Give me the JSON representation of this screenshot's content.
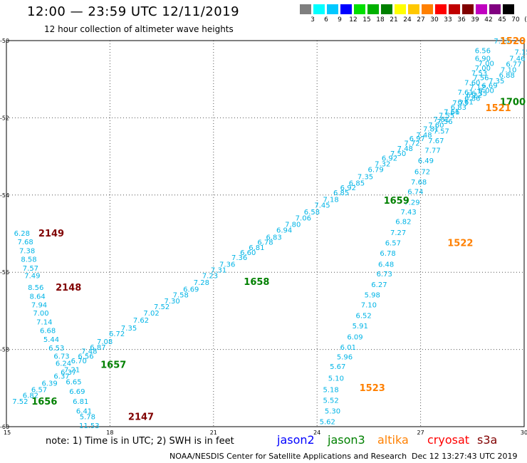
{
  "header": {
    "title": "12:00 — 23:59 UTC 12/11/2019",
    "subtitle": "12 hour collection of altimeter wave heights"
  },
  "legend": {
    "labels": [
      "3",
      "6",
      "9",
      "12",
      "15",
      "18",
      "21",
      "24",
      "27",
      "30",
      "33",
      "36",
      "39",
      "42",
      "45",
      "70",
      "(ft)"
    ],
    "colors": [
      "#7f7f7f",
      "#00ffff",
      "#00c8ff",
      "#0000ff",
      "#00e000",
      "#00b000",
      "#008000",
      "#ffff00",
      "#ffc800",
      "#ff8000",
      "#ff0000",
      "#c00000",
      "#800000",
      "#c000c0",
      "#800080",
      "#000000"
    ]
  },
  "chart_data": {
    "type": "scatter",
    "xlim": [
      15,
      30
    ],
    "ylim": [
      -60,
      -50
    ],
    "x_ticks": [
      "15",
      "18",
      "21",
      "24",
      "27",
      "30"
    ],
    "y_ticks": [
      "-50",
      "-52",
      "-54",
      "-56",
      "-58",
      "-60"
    ],
    "wave_color": "#00b4e6",
    "tracks": [
      {
        "time": "2149",
        "color": "#800000",
        "label_pos": [
          16.3,
          -55.0
        ],
        "points": [
          [
            15.45,
            -55.0,
            "6.28"
          ],
          [
            15.55,
            -55.22,
            "7.68"
          ],
          [
            15.6,
            -55.45,
            "7.38"
          ],
          [
            15.65,
            -55.67,
            "8.58"
          ],
          [
            15.7,
            -55.9,
            "7.57"
          ],
          [
            15.75,
            -56.1,
            "7.49"
          ]
        ]
      },
      {
        "time": "2148",
        "color": "#800000",
        "label_pos": [
          16.8,
          -56.4
        ],
        "points": [
          [
            15.85,
            -56.4,
            "8.56"
          ],
          [
            15.9,
            -56.63,
            "8.64"
          ],
          [
            15.95,
            -56.85,
            "7.94"
          ],
          [
            16.0,
            -57.07,
            "7.00"
          ],
          [
            16.1,
            -57.3,
            "7.14"
          ],
          [
            16.2,
            -57.52,
            "6.68"
          ],
          [
            16.3,
            -57.75,
            "5.44"
          ],
          [
            16.45,
            -57.97,
            "6.53"
          ],
          [
            16.6,
            -58.18,
            "6.73"
          ],
          [
            16.65,
            -58.37,
            "6.24"
          ],
          [
            16.8,
            -58.6,
            "6.37"
          ],
          [
            16.95,
            -58.85,
            "6.65"
          ],
          [
            17.05,
            -59.1,
            "6.69"
          ],
          [
            17.15,
            -59.35,
            "6.81"
          ],
          [
            17.25,
            -59.6,
            "6.41"
          ],
          [
            17.35,
            -59.75,
            "5.78"
          ],
          [
            17.4,
            -59.98,
            "11.53"
          ]
        ]
      },
      {
        "time": "2147",
        "color": "#800000",
        "label_pos": [
          18.9,
          -59.75
        ],
        "points": []
      },
      {
        "time": "1656",
        "color": "#008000",
        "label_pos": [
          16.1,
          -59.35
        ],
        "points": [
          [
            15.4,
            -59.35,
            "7.52"
          ],
          [
            15.7,
            -59.2,
            "6.82"
          ],
          [
            15.95,
            -59.05,
            "6.57"
          ],
          [
            16.25,
            -58.88,
            "6.39"
          ],
          [
            16.6,
            -58.7,
            "6.37"
          ],
          [
            16.9,
            -58.53,
            "7.21"
          ],
          [
            17.1,
            -58.3,
            "6.70"
          ],
          [
            17.3,
            -58.18,
            "6.56"
          ],
          [
            17.4,
            -58.05,
            "7.48"
          ],
          [
            17.65,
            -57.95,
            "6.87"
          ],
          [
            17.85,
            -57.8,
            "7.08"
          ],
          [
            18.2,
            -57.6,
            "6.72"
          ],
          [
            18.55,
            -57.45,
            "7.35"
          ],
          [
            18.9,
            -57.25,
            "7.62"
          ],
          [
            19.2,
            -57.07,
            "7.02"
          ],
          [
            19.5,
            -56.9,
            "7.52"
          ],
          [
            19.8,
            -56.75,
            "7.30"
          ],
          [
            20.05,
            -56.6,
            "7.58"
          ],
          [
            20.35,
            -56.45,
            "6.69"
          ],
          [
            20.65,
            -56.27,
            "7.28"
          ],
          [
            20.9,
            -56.1,
            "7.23"
          ],
          [
            21.15,
            -55.95,
            "7.31"
          ],
          [
            21.4,
            -55.8,
            "7.36"
          ],
          [
            21.75,
            -55.63,
            "7.36"
          ],
          [
            22.0,
            -55.5,
            "6.60"
          ],
          [
            22.25,
            -55.37,
            "6.81"
          ],
          [
            22.5,
            -55.23,
            "6.78"
          ],
          [
            22.75,
            -55.1,
            "6.83"
          ],
          [
            23.05,
            -54.92,
            "6.94"
          ],
          [
            23.3,
            -54.77,
            "7.80"
          ],
          [
            23.6,
            -54.6,
            "7.06"
          ],
          [
            23.85,
            -54.45,
            "6.58"
          ],
          [
            24.15,
            -54.27,
            "7.45"
          ],
          [
            24.4,
            -54.12,
            "7.18"
          ],
          [
            24.7,
            -53.95,
            "6.85"
          ],
          [
            24.9,
            -53.82,
            "6.92"
          ],
          [
            25.15,
            -53.7,
            "6.85"
          ],
          [
            25.4,
            -53.53,
            "7.35"
          ],
          [
            25.7,
            -53.35,
            "6.79"
          ],
          [
            25.9,
            -53.2,
            "7.32"
          ],
          [
            26.1,
            -53.05,
            "6.92"
          ],
          [
            26.35,
            -52.93,
            "7.50"
          ],
          [
            26.55,
            -52.8,
            "7.48"
          ],
          [
            26.75,
            -52.67,
            "7.72"
          ],
          [
            26.9,
            -52.55,
            "6.97"
          ],
          [
            27.1,
            -52.45,
            "7.48"
          ],
          [
            27.3,
            -52.3,
            "7.81"
          ],
          [
            27.45,
            -52.2,
            "7.60"
          ],
          [
            27.6,
            -52.05,
            "7.81"
          ],
          [
            27.75,
            -51.95,
            "7.55"
          ],
          [
            27.9,
            -51.85,
            "7.56"
          ],
          [
            28.1,
            -51.73,
            "6.83"
          ],
          [
            28.3,
            -51.6,
            "6.61"
          ],
          [
            28.5,
            -51.5,
            "6.86"
          ],
          [
            28.55,
            -51.42,
            "6.22"
          ],
          [
            28.7,
            -51.37,
            "6.35"
          ],
          [
            28.9,
            -51.3,
            "6.00"
          ],
          [
            29.0,
            -51.17,
            "6.69"
          ],
          [
            29.2,
            -51.05,
            "7.35"
          ],
          [
            29.5,
            -50.9,
            "6.88"
          ],
          [
            29.55,
            -50.77,
            "7.10"
          ],
          [
            29.7,
            -50.62,
            "6.77"
          ],
          [
            29.8,
            -50.47,
            "7.46"
          ],
          [
            29.95,
            -50.3,
            "7.15"
          ],
          [
            29.35,
            -50.02,
            "7.33"
          ],
          [
            28.8,
            -50.27,
            "6.56"
          ],
          [
            28.8,
            -50.47,
            "6.90"
          ],
          [
            28.8,
            -50.72,
            "7.00"
          ],
          [
            28.75,
            -50.97,
            "7.56"
          ],
          [
            28.65,
            -51.22,
            "7.12"
          ]
        ]
      },
      {
        "time": "1657",
        "color": "#008000",
        "label_pos": [
          18.1,
          -58.4
        ],
        "points": []
      },
      {
        "time": "1658",
        "color": "#008000",
        "label_pos": [
          22.25,
          -56.25
        ],
        "points": []
      },
      {
        "time": "1659",
        "color": "#008000",
        "label_pos": [
          26.3,
          -54.15
        ],
        "points": []
      },
      {
        "time": "1700",
        "color": "#008000",
        "label_pos": [
          29.9,
          -51.6
        ],
        "points": []
      },
      {
        "time": "1523",
        "color": "#ff8000",
        "label_pos": [
          25.6,
          -59.0
        ],
        "points": [
          [
            24.3,
            -59.88,
            "5.62"
          ],
          [
            24.45,
            -59.6,
            "5.30"
          ],
          [
            24.4,
            -59.33,
            "5.52"
          ],
          [
            24.4,
            -59.05,
            "5.18"
          ],
          [
            24.55,
            -58.75,
            "5.10"
          ],
          [
            24.6,
            -58.45,
            "5.67"
          ],
          [
            24.8,
            -58.2,
            "5.96"
          ],
          [
            24.9,
            -57.95,
            "6.01"
          ],
          [
            25.1,
            -57.68,
            "6.09"
          ],
          [
            25.25,
            -57.4,
            "5.91"
          ],
          [
            25.35,
            -57.13,
            "6.52"
          ],
          [
            25.5,
            -56.85,
            "7.10"
          ],
          [
            25.6,
            -56.6,
            "5.98"
          ],
          [
            25.8,
            -56.33,
            "6.27"
          ],
          [
            25.95,
            -56.05,
            "6.73"
          ],
          [
            26.0,
            -55.8,
            "6.48"
          ],
          [
            26.05,
            -55.52,
            "6.78"
          ],
          [
            26.2,
            -55.25,
            "6.57"
          ],
          [
            26.35,
            -54.98,
            "7.27"
          ],
          [
            26.5,
            -54.7,
            "6.82"
          ],
          [
            26.65,
            -54.45,
            "7.43"
          ],
          [
            26.75,
            -54.2,
            "7.29"
          ],
          [
            26.85,
            -53.92,
            "6.74"
          ],
          [
            26.95,
            -53.67,
            "7.68"
          ],
          [
            27.05,
            -53.4,
            "6.72"
          ],
          [
            27.15,
            -53.12,
            "6.49"
          ],
          [
            27.35,
            -52.85,
            "7.77"
          ],
          [
            27.45,
            -52.6,
            "7.67"
          ],
          [
            27.6,
            -52.35,
            "7.57"
          ],
          [
            27.7,
            -52.1,
            "7.56"
          ],
          [
            27.9,
            -51.85,
            "7.61"
          ],
          [
            28.15,
            -51.62,
            "7.73"
          ],
          [
            28.3,
            -51.35,
            "7.61"
          ],
          [
            28.5,
            -51.1,
            "7.60"
          ],
          [
            28.7,
            -50.85,
            "7.53"
          ],
          [
            28.9,
            -50.6,
            "7.00"
          ]
        ]
      },
      {
        "time": "1522",
        "color": "#ff8000",
        "label_pos": [
          28.15,
          -55.25
        ],
        "points": []
      },
      {
        "time": "1521",
        "color": "#ff8000",
        "label_pos": [
          29.25,
          -51.75
        ],
        "points": []
      },
      {
        "time": "1520",
        "color": "#ff8000",
        "label_pos": [
          30.0,
          -50.02
        ],
        "points": []
      }
    ]
  },
  "footer": {
    "note": "note: 1) Time is in UTC; 2) SWH is in feet",
    "satellites": [
      {
        "name": "jason2",
        "color": "#0000ff"
      },
      {
        "name": "jason3",
        "color": "#008000"
      },
      {
        "name": "altika",
        "color": "#ff8000"
      },
      {
        "name": "cryosat",
        "color": "#ff0000"
      },
      {
        "name": "s3a",
        "color": "#800000"
      }
    ],
    "credit": "NOAA/NESDIS Center for Satellite Applications and Research",
    "timestamp": "Dec 12 13:27:43 UTC 2019"
  }
}
